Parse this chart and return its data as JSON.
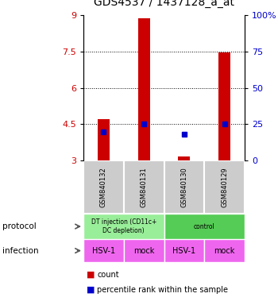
{
  "title": "GDS4537 / 1437128_a_at",
  "samples": [
    "GSM840132",
    "GSM840131",
    "GSM840130",
    "GSM840129"
  ],
  "count_values": [
    4.72,
    8.88,
    3.18,
    7.47
  ],
  "percentile_values": [
    20,
    25,
    18,
    25
  ],
  "ylim_left": [
    3,
    9
  ],
  "ylim_right": [
    0,
    100
  ],
  "yticks_left": [
    3,
    4.5,
    6,
    7.5,
    9
  ],
  "yticks_right": [
    0,
    25,
    50,
    75,
    100
  ],
  "ytick_right_labels": [
    "0",
    "25",
    "50",
    "75",
    "100%"
  ],
  "hlines": [
    4.5,
    6.0,
    7.5
  ],
  "bar_color": "#cc0000",
  "dot_color": "#0000cc",
  "bar_width": 0.3,
  "protocol_items": [
    {
      "label": "DT injection (CD11c+\nDC depletion)",
      "color": "#99ee99",
      "xstart": -0.5,
      "xend": 1.5
    },
    {
      "label": "control",
      "color": "#55cc55",
      "xstart": 1.5,
      "xend": 3.5
    }
  ],
  "infection_labels": [
    "HSV-1",
    "mock",
    "HSV-1",
    "mock"
  ],
  "infection_color": "#ee66ee",
  "legend_count_color": "#cc0000",
  "legend_dot_color": "#0000cc",
  "legend_count_label": "count",
  "legend_dot_label": "percentile rank within the sample",
  "title_fontsize": 10,
  "tick_left_color": "#cc0000",
  "tick_right_color": "#0000cc",
  "sample_bg_color": "#cccccc"
}
